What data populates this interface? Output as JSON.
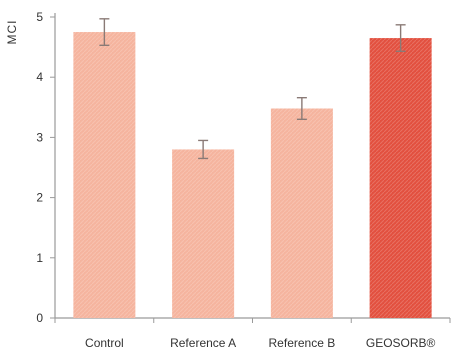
{
  "chart_data": {
    "type": "bar",
    "categories": [
      "Control",
      "Reference A",
      "Reference B",
      "GEOSORB®"
    ],
    "values": [
      4.75,
      2.8,
      3.48,
      4.65
    ],
    "errors": [
      0.22,
      0.15,
      0.18,
      0.22
    ],
    "ylabel": "MCI",
    "ylim": [
      0,
      5
    ],
    "yticks": [
      "0",
      "1",
      "2",
      "3",
      "4",
      "5"
    ],
    "grid": false,
    "colors": [
      "#f5b49e",
      "#f5b49e",
      "#f5b49e",
      "#e2503f"
    ]
  }
}
